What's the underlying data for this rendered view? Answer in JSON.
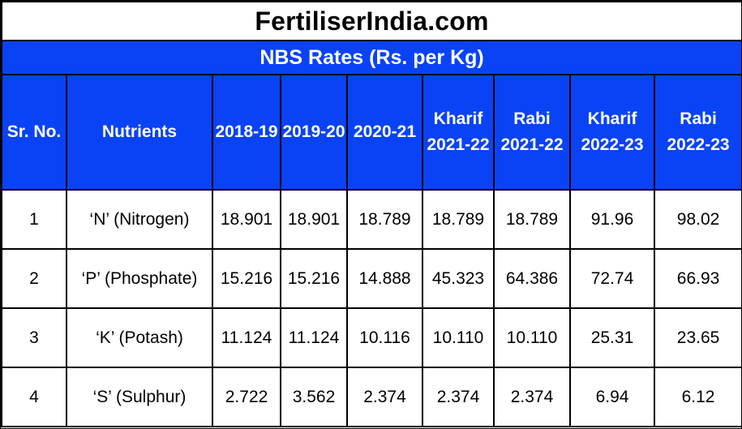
{
  "site": {
    "title": "FertiliserIndia.com"
  },
  "table": {
    "title": "NBS Rates (Rs. per Kg)",
    "headers": [
      {
        "line1": "Sr. No.",
        "line2": ""
      },
      {
        "line1": "Nutrients",
        "line2": ""
      },
      {
        "line1": "2018-19",
        "line2": ""
      },
      {
        "line1": "2019-20",
        "line2": ""
      },
      {
        "line1": "2020-21",
        "line2": ""
      },
      {
        "line1": "Kharif",
        "line2": "2021-22"
      },
      {
        "line1": "Rabi",
        "line2": "2021-22"
      },
      {
        "line1": "Kharif",
        "line2": "2022-23"
      },
      {
        "line1": "Rabi",
        "line2": "2022-23"
      }
    ],
    "rows": [
      {
        "sr": "1",
        "nutrient": "‘N’ (Nitrogen)",
        "values": [
          "18.901",
          "18.901",
          "18.789",
          "18.789",
          "18.789",
          "91.96",
          "98.02"
        ]
      },
      {
        "sr": "2",
        "nutrient": "‘P’ (Phosphate)",
        "values": [
          "15.216",
          "15.216",
          "14.888",
          "45.323",
          "64.386",
          "72.74",
          "66.93"
        ]
      },
      {
        "sr": "3",
        "nutrient": "‘K’ (Potash)",
        "values": [
          "11.124",
          "11.124",
          "10.116",
          "10.110",
          "10.110",
          "25.31",
          "23.65"
        ]
      },
      {
        "sr": "4",
        "nutrient": "‘S’ (Sulphur)",
        "values": [
          "2.722",
          "3.562",
          "2.374",
          "2.374",
          "2.374",
          "6.94",
          "6.12"
        ]
      }
    ]
  },
  "colors": {
    "header_bg": "#0a43f5",
    "header_text": "#ffffff",
    "border": "#000000"
  }
}
